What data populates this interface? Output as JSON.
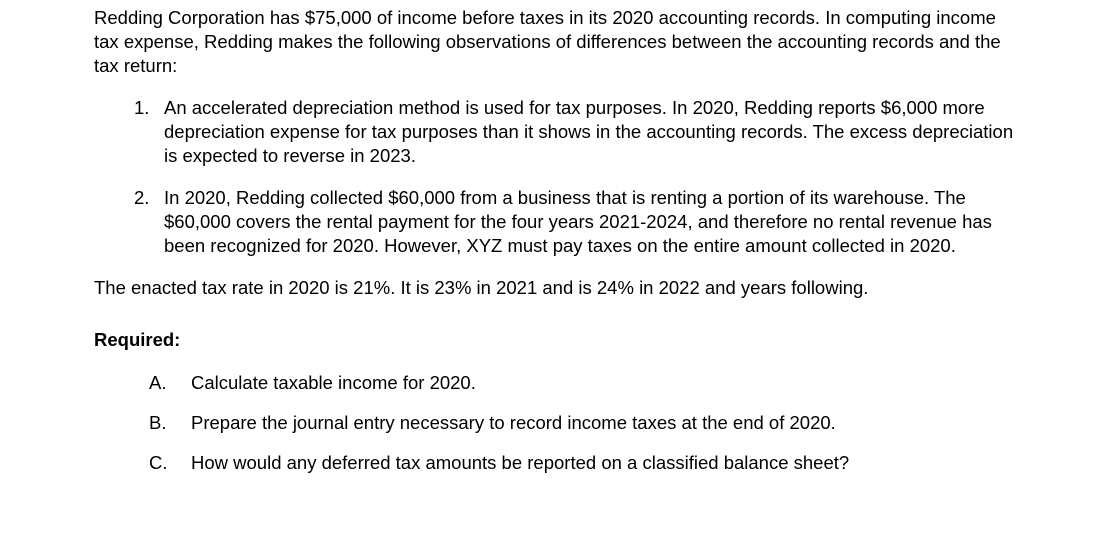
{
  "text_color": "#000000",
  "background_color": "#ffffff",
  "font_family": "Arial",
  "base_font_size_pt": 14,
  "intro": "Redding Corporation has $75,000 of income before taxes in its 2020 accounting records. In computing income tax expense, Redding makes the following observations of differences between the accounting records and the tax return:",
  "numbered": [
    {
      "marker": "1.",
      "text": "An accelerated depreciation method is used for tax purposes.  In 2020, Redding reports $6,000 more depreciation expense for tax purposes than it shows in the accounting records. The excess depreciation is expected to reverse in 2023."
    },
    {
      "marker": "2.",
      "text": "In 2020, Redding collected $60,000 from a business that is renting a portion of its warehouse.  The $60,000 covers the rental payment for the four years 2021-2024, and therefore no rental revenue has been recognized for 2020.  However, XYZ must pay taxes on the entire amount collected in 2020."
    }
  ],
  "tax_rate_line": "The enacted tax rate in 2020 is 21%.  It is 23% in 2021 and is 24% in 2022 and years following.",
  "required_heading": "Required:",
  "required": [
    {
      "marker": "A.",
      "text": "Calculate taxable income for 2020."
    },
    {
      "marker": "B.",
      "text": "Prepare the journal entry necessary to record income taxes at the end of 2020."
    },
    {
      "marker": "C.",
      "text": "How would any deferred tax amounts be reported on a classified balance sheet?"
    }
  ]
}
